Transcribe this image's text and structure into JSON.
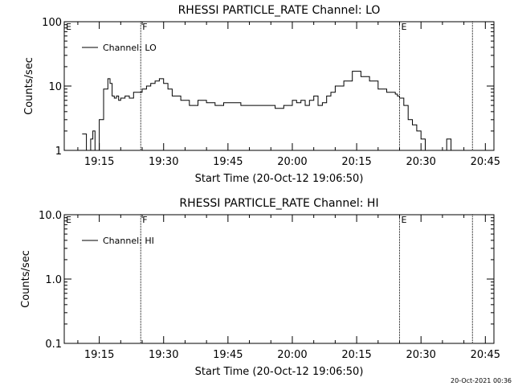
{
  "chart_data": [
    {
      "type": "line",
      "title": "RHESSI PARTICLE_RATE Channel: LO",
      "xlabel": "Start Time (20-Oct-12 19:06:50)",
      "ylabel": "Counts/sec",
      "yscale": "log",
      "ylim": [
        1,
        100
      ],
      "yticks": [
        "1",
        "10",
        "100"
      ],
      "xlim": [
        "19:06:50",
        "20:47:00"
      ],
      "xticks": [
        "19:15",
        "19:30",
        "19:45",
        "20:00",
        "20:15",
        "20:30",
        "20:45"
      ],
      "legend": "top-left",
      "series": [
        {
          "name": "Channel: LO",
          "x": [
            "19:11",
            "19:12",
            "19:13",
            "19:13:30",
            "19:14",
            "19:15",
            "19:16",
            "19:17",
            "19:17:30",
            "19:18",
            "19:18:30",
            "19:19",
            "19:19:30",
            "19:20",
            "19:21",
            "19:22",
            "19:23",
            "19:24",
            "19:25",
            "19:26",
            "19:27",
            "19:28",
            "19:29",
            "19:30",
            "19:31",
            "19:32",
            "19:34",
            "19:36",
            "19:38",
            "19:40",
            "19:42",
            "19:44",
            "19:46",
            "19:48",
            "19:50",
            "19:52",
            "19:54",
            "19:56",
            "19:58",
            "20:00",
            "20:01",
            "20:02",
            "20:03",
            "20:04",
            "20:05",
            "20:06",
            "20:07",
            "20:08",
            "20:09",
            "20:10",
            "20:12",
            "20:14",
            "20:16",
            "20:18",
            "20:20",
            "20:22",
            "20:24",
            "20:24:30",
            "20:25",
            "20:26",
            "20:27",
            "20:28",
            "20:29",
            "20:30",
            "20:31",
            "20:33",
            "20:34",
            "20:36",
            "20:37",
            "20:38"
          ],
          "y": [
            1.8,
            1,
            1.5,
            2,
            1,
            3,
            9,
            13,
            11,
            7,
            6.5,
            7,
            6,
            6.5,
            7,
            6.5,
            8,
            8,
            9,
            10,
            11,
            12,
            13,
            11,
            9,
            7,
            6,
            5,
            6,
            5.5,
            5,
            5.5,
            5.5,
            5,
            5,
            5,
            5,
            4.5,
            5,
            6,
            5.5,
            6,
            5,
            6,
            7,
            5,
            5.5,
            7,
            8,
            10,
            12,
            17,
            14,
            12,
            9,
            8,
            7.5,
            7,
            6.5,
            5,
            3,
            2.5,
            2,
            1.5,
            1,
            1,
            1,
            1.5,
            1,
            1
          ]
        }
      ],
      "annotations": [
        {
          "label": "E",
          "x": "19:06:50"
        },
        {
          "label": "F",
          "x": "19:24:40"
        },
        {
          "label": "E",
          "x": "20:25:00"
        },
        {
          "label": "",
          "x": "20:42:00"
        }
      ]
    },
    {
      "type": "line",
      "title": "RHESSI PARTICLE_RATE Channel: HI",
      "xlabel": "Start Time (20-Oct-12 19:06:50)",
      "ylabel": "Counts/sec",
      "yscale": "log",
      "ylim": [
        0.1,
        10
      ],
      "yticks": [
        "0.1",
        "1.0",
        "10.0"
      ],
      "xlim": [
        "19:06:50",
        "20:47:00"
      ],
      "xticks": [
        "19:15",
        "19:30",
        "19:45",
        "20:00",
        "20:15",
        "20:30",
        "20:45"
      ],
      "legend": "top-left",
      "series": [
        {
          "name": "Channel: HI",
          "x": [],
          "y": []
        }
      ],
      "annotations": [
        {
          "label": "E",
          "x": "19:06:50"
        },
        {
          "label": "F",
          "x": "19:24:40"
        },
        {
          "label": "E",
          "x": "20:25:00"
        },
        {
          "label": "",
          "x": "20:42:00"
        }
      ]
    }
  ],
  "footer": {
    "timestamp": "20-Oct-2021 00:36"
  }
}
